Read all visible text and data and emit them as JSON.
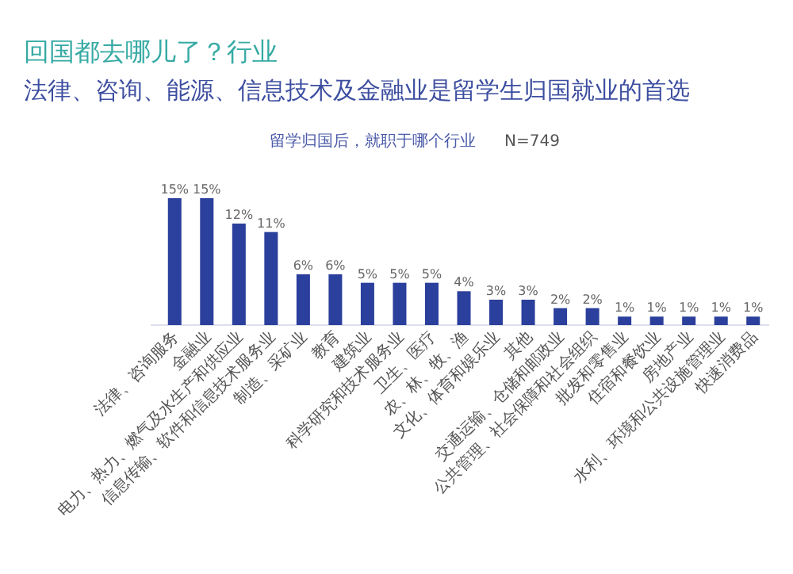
{
  "chart_data": {
    "type": "bar",
    "title": "回国都去哪儿了？行业",
    "subtitle": "法律、咨询、能源、信息技术及金融业是留学生归国就业的首选",
    "annotations": [
      "留学归国后，就职于哪个行业",
      "N=749"
    ],
    "categories": [
      "法律、咨询服务",
      "金融业",
      "电力、热力、燃气及水生产和供应业",
      "信息传输、软件和信息技术服务业",
      "制造、采矿业",
      "教育",
      "建筑业",
      "科学研究和技术服务业",
      "卫生、医疗",
      "农、林、牧、渔",
      "文化、体育和娱乐业",
      "其他",
      "交通运输、仓储和邮政业",
      "公共管理、社会保障和社会组织",
      "批发和零售业",
      "住宿和餐饮业",
      "房地产业",
      "水利、环境和公共设施管理业",
      "快速消费品"
    ],
    "values": [
      15,
      15,
      12,
      11,
      6,
      6,
      5,
      5,
      5,
      4,
      3,
      3,
      2,
      2,
      1,
      1,
      1,
      1,
      1
    ],
    "value_labels": [
      "15%",
      "15%",
      "12%",
      "11%",
      "6%",
      "6%",
      "5%",
      "5%",
      "5%",
      "4%",
      "3%",
      "3%",
      "2%",
      "2%",
      "1%",
      "1%",
      "1%",
      "1%",
      "1%"
    ],
    "color": "#2b3f9c"
  }
}
